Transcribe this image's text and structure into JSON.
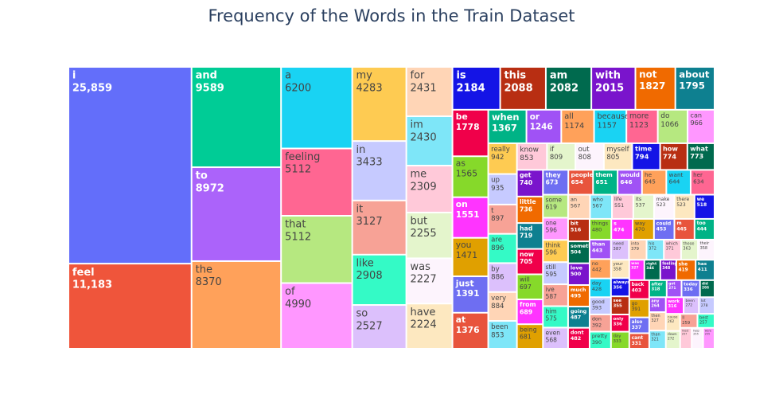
{
  "chart_data": {
    "type": "treemap",
    "title": "Frequency of the Words in the Train Dataset",
    "items": [
      {
        "word": "i",
        "count": "25,859",
        "value": 25859,
        "color": "#636efa"
      },
      {
        "word": "feel",
        "count": "11,183",
        "value": 11183,
        "color": "#ef553b"
      },
      {
        "word": "and",
        "count": "9589",
        "value": 9589,
        "color": "#00cc96"
      },
      {
        "word": "to",
        "count": "8972",
        "value": 8972,
        "color": "#ab63fa"
      },
      {
        "word": "the",
        "count": "8370",
        "value": 8370,
        "color": "#ffa15a"
      },
      {
        "word": "a",
        "count": "6200",
        "value": 6200,
        "color": "#19d3f3"
      },
      {
        "word": "feeling",
        "count": "5112",
        "value": 5112,
        "color": "#ff6692"
      },
      {
        "word": "that",
        "count": "5112",
        "value": 5112,
        "color": "#b6e880"
      },
      {
        "word": "of",
        "count": "4990",
        "value": 4990,
        "color": "#ff97ff"
      },
      {
        "word": "my",
        "count": "4283",
        "value": 4283,
        "color": "#fecb52"
      },
      {
        "word": "in",
        "count": "3433",
        "value": 3433,
        "color": "#c6caff"
      },
      {
        "word": "it",
        "count": "3127",
        "value": 3127,
        "color": "#f7a296"
      },
      {
        "word": "like",
        "count": "2908",
        "value": 2908,
        "color": "#34fac6"
      },
      {
        "word": "so",
        "count": "2527",
        "value": 2527,
        "color": "#dcc0fc"
      },
      {
        "word": "for",
        "count": "2431",
        "value": 2431,
        "color": "#ffd5b6"
      },
      {
        "word": "im",
        "count": "2430",
        "value": 2430,
        "color": "#7ee6f8"
      },
      {
        "word": "me",
        "count": "2309",
        "value": 2309,
        "color": "#ffc9d9"
      },
      {
        "word": "but",
        "count": "2255",
        "value": 2255,
        "color": "#e4f5cc"
      },
      {
        "word": "was",
        "count": "2227",
        "value": 2227,
        "color": "#fdf4fd"
      },
      {
        "word": "have",
        "count": "2224",
        "value": 2224,
        "color": "#fde8c0"
      },
      {
        "word": "is",
        "count": "2184",
        "value": 2184,
        "color": "#1414e6"
      },
      {
        "word": "this",
        "count": "2088",
        "value": 2088,
        "color": "#b82e12"
      },
      {
        "word": "am",
        "count": "2082",
        "value": 2082,
        "color": "#006a4e"
      },
      {
        "word": "with",
        "count": "2015",
        "value": 2015,
        "color": "#7a14cc"
      },
      {
        "word": "not",
        "count": "1827",
        "value": 1827,
        "color": "#f06a00"
      },
      {
        "word": "about",
        "count": "1795",
        "value": 1795,
        "color": "#0e8090"
      },
      {
        "word": "be",
        "count": "1778",
        "value": 1778,
        "color": "#f0004a"
      },
      {
        "word": "as",
        "count": "1565",
        "value": 1565,
        "color": "#86d92a"
      },
      {
        "word": "on",
        "count": "1551",
        "value": 1551,
        "color": "#ff34ff"
      },
      {
        "word": "you",
        "count": "1471",
        "value": 1471,
        "color": "#e0a000"
      },
      {
        "word": "just",
        "count": "1391",
        "value": 1391,
        "color": "#6e6ef2"
      },
      {
        "word": "at",
        "count": "1376",
        "value": 1376,
        "color": "#e8543c"
      },
      {
        "word": "when",
        "count": "1367",
        "value": 1367,
        "color": "#00b386"
      },
      {
        "word": "or",
        "count": "1246",
        "value": 1246,
        "color": "#a052f5"
      },
      {
        "word": "all",
        "count": "1174",
        "value": 1174,
        "color": "#ffa15a"
      },
      {
        "word": "because",
        "count": "1157",
        "value": 1157,
        "color": "#19d3f3"
      },
      {
        "word": "more",
        "count": "1123",
        "value": 1123,
        "color": "#ff6692"
      },
      {
        "word": "do",
        "count": "1066",
        "value": 1066,
        "color": "#b6e880"
      },
      {
        "word": "can",
        "count": "966",
        "value": 966,
        "color": "#ff97ff"
      },
      {
        "word": "really",
        "count": "942",
        "value": 942,
        "color": "#fecb52"
      },
      {
        "word": "up",
        "count": "935",
        "value": 935,
        "color": "#c6caff"
      },
      {
        "word": "t",
        "count": "897",
        "value": 897,
        "color": "#f7a296"
      },
      {
        "word": "are",
        "count": "896",
        "value": 896,
        "color": "#34fac6"
      },
      {
        "word": "by",
        "count": "886",
        "value": 886,
        "color": "#dcc0fc"
      },
      {
        "word": "very",
        "count": "884",
        "value": 884,
        "color": "#ffd5b6"
      },
      {
        "word": "been",
        "count": "853",
        "value": 853,
        "color": "#7ee6f8"
      },
      {
        "word": "know",
        "count": "853",
        "value": 853,
        "color": "#ffc9d9"
      },
      {
        "word": "if",
        "count": "809",
        "value": 809,
        "color": "#e4f5cc"
      },
      {
        "word": "out",
        "count": "808",
        "value": 808,
        "color": "#fdf4fd"
      },
      {
        "word": "myself",
        "count": "805",
        "value": 805,
        "color": "#fde8c0"
      },
      {
        "word": "time",
        "count": "794",
        "value": 794,
        "color": "#1414e6"
      },
      {
        "word": "how",
        "count": "774",
        "value": 774,
        "color": "#b82e12"
      },
      {
        "word": "what",
        "count": "773",
        "value": 773,
        "color": "#006a4e"
      },
      {
        "word": "get",
        "count": "740",
        "value": 740,
        "color": "#7a14cc"
      },
      {
        "word": "little",
        "count": "736",
        "value": 736,
        "color": "#f06a00"
      },
      {
        "word": "had",
        "count": "719",
        "value": 719,
        "color": "#0e8090"
      },
      {
        "word": "now",
        "count": "705",
        "value": 705,
        "color": "#f0004a"
      },
      {
        "word": "will",
        "count": "697",
        "value": 697,
        "color": "#86d92a"
      },
      {
        "word": "from",
        "count": "689",
        "value": 689,
        "color": "#ff34ff"
      },
      {
        "word": "being",
        "count": "681",
        "value": 681,
        "color": "#e0a000"
      },
      {
        "word": "they",
        "count": "673",
        "value": 673,
        "color": "#6e6ef2"
      },
      {
        "word": "people",
        "count": "654",
        "value": 654,
        "color": "#e8543c"
      },
      {
        "word": "them",
        "count": "651",
        "value": 651,
        "color": "#00b386"
      },
      {
        "word": "would",
        "count": "646",
        "value": 646,
        "color": "#a052f5"
      },
      {
        "word": "he",
        "count": "645",
        "value": 645,
        "color": "#ffa15a"
      },
      {
        "word": "want",
        "count": "644",
        "value": 644,
        "color": "#19d3f3"
      },
      {
        "word": "her",
        "count": "634",
        "value": 634,
        "color": "#ff6692"
      },
      {
        "word": "some",
        "count": "619",
        "value": 619,
        "color": "#b6e880"
      },
      {
        "word": "one",
        "count": "596",
        "value": 596,
        "color": "#ff97ff"
      },
      {
        "word": "think",
        "count": "596",
        "value": 596,
        "color": "#fecb52"
      },
      {
        "word": "still",
        "count": "595",
        "value": 595,
        "color": "#c6caff"
      },
      {
        "word": "ive",
        "count": "587",
        "value": 587,
        "color": "#f7a296"
      },
      {
        "word": "him",
        "count": "575",
        "value": 575,
        "color": "#34fac6"
      },
      {
        "word": "even",
        "count": "568",
        "value": 568,
        "color": "#dcc0fc"
      },
      {
        "word": "an",
        "count": "567",
        "value": 567,
        "color": "#ffd5b6"
      },
      {
        "word": "who",
        "count": "567",
        "value": 567,
        "color": "#7ee6f8"
      },
      {
        "word": "life",
        "count": "551",
        "value": 551,
        "color": "#ffc9d9"
      },
      {
        "word": "its",
        "count": "537",
        "value": 537,
        "color": "#e4f5cc"
      },
      {
        "word": "make",
        "count": "523",
        "value": 523,
        "color": "#fdf4fd"
      },
      {
        "word": "there",
        "count": "523",
        "value": 523,
        "color": "#fde8c0"
      },
      {
        "word": "we",
        "count": "518",
        "value": 518,
        "color": "#1414e6"
      },
      {
        "word": "bit",
        "count": "516",
        "value": 516,
        "color": "#b82e12"
      },
      {
        "word": "something",
        "count": "504",
        "value": 504,
        "color": "#006a4e"
      },
      {
        "word": "love",
        "count": "500",
        "value": 500,
        "color": "#7a14cc"
      },
      {
        "word": "much",
        "count": "495",
        "value": 495,
        "color": "#f06a00"
      },
      {
        "word": "going",
        "count": "487",
        "value": 487,
        "color": "#0e8090"
      },
      {
        "word": "dont",
        "count": "482",
        "value": 482,
        "color": "#f0004a"
      },
      {
        "word": "things",
        "count": "480",
        "value": 480,
        "color": "#86d92a"
      },
      {
        "word": "s",
        "count": "474",
        "value": 474,
        "color": "#ff34ff"
      },
      {
        "word": "way",
        "count": "470",
        "value": 470,
        "color": "#e0a000"
      },
      {
        "word": "could",
        "count": "453",
        "value": 453,
        "color": "#6e6ef2"
      },
      {
        "word": "m",
        "count": "445",
        "value": 445,
        "color": "#e8543c"
      },
      {
        "word": "too",
        "count": "444",
        "value": 444,
        "color": "#00b386"
      },
      {
        "word": "than",
        "count": "443",
        "value": 443,
        "color": "#a052f5"
      },
      {
        "word": "no",
        "count": "442",
        "value": 442,
        "color": "#ffa15a"
      },
      {
        "word": "day",
        "count": "428",
        "value": 428,
        "color": "#19d3f3"
      },
      {
        "word": "good",
        "count": "393",
        "value": 393,
        "color": "#c6caff"
      },
      {
        "word": "don",
        "count": "392",
        "value": 392,
        "color": "#f7a296"
      },
      {
        "word": "pretty",
        "count": "390",
        "value": 390,
        "color": "#34fac6"
      },
      {
        "word": "need",
        "count": "387",
        "value": 387,
        "color": "#dcc0fc"
      },
      {
        "word": "into",
        "count": "379",
        "value": 379,
        "color": "#ffd5b6"
      },
      {
        "word": "his",
        "count": "372",
        "value": 372,
        "color": "#7ee6f8"
      },
      {
        "word": "which",
        "count": "371",
        "value": 371,
        "color": "#ffc9d9"
      },
      {
        "word": "these",
        "count": "363",
        "value": 363,
        "color": "#e4f5cc"
      },
      {
        "word": "their",
        "count": "358",
        "value": 358,
        "color": "#fdf4fd"
      },
      {
        "word": "your",
        "count": "358",
        "value": 358,
        "color": "#fde8c0"
      },
      {
        "word": "always",
        "count": "356",
        "value": 356,
        "color": "#1414e6"
      },
      {
        "word": "see",
        "count": "355",
        "value": 355,
        "color": "#b82e12"
      },
      {
        "word": "only",
        "count": "336",
        "value": 336,
        "color": "#f0004a"
      },
      {
        "word": "day",
        "count": "333",
        "value": 333,
        "color": "#86d92a"
      },
      {
        "word": "was",
        "count": "327",
        "value": 327,
        "color": "#ff34ff"
      },
      {
        "word": "right",
        "count": "346",
        "value": 346,
        "color": "#006a4e"
      },
      {
        "word": "feelings",
        "count": "348",
        "value": 348,
        "color": "#7a14cc"
      },
      {
        "word": "she",
        "count": "419",
        "value": 419,
        "color": "#f06a00"
      },
      {
        "word": "has",
        "count": "411",
        "value": 411,
        "color": "#0e8090"
      },
      {
        "word": "back",
        "count": "403",
        "value": 403,
        "color": "#f0004a"
      },
      {
        "word": "go",
        "count": "391",
        "value": 391,
        "color": "#e0a000"
      },
      {
        "word": "also",
        "count": "337",
        "value": 337,
        "color": "#6e6ef2"
      },
      {
        "word": "cant",
        "count": "331",
        "value": 331,
        "color": "#e8543c"
      },
      {
        "word": "after",
        "count": "318",
        "value": 318,
        "color": "#00b386"
      },
      {
        "word": "got",
        "count": "271",
        "value": 271,
        "color": "#a052f5"
      },
      {
        "word": "today",
        "count": "336",
        "value": 336,
        "color": "#6e6ef2"
      },
      {
        "word": "did",
        "count": "266",
        "value": 266,
        "color": "#006a4e"
      },
      {
        "word": "any",
        "count": "264",
        "value": 264,
        "color": "#a052f5"
      },
      {
        "word": "then",
        "count": "327",
        "value": 327,
        "color": "#ffd5b6"
      },
      {
        "word": "than",
        "count": "321",
        "value": 321,
        "color": "#7ee6f8"
      },
      {
        "word": "work",
        "count": "316",
        "value": 316,
        "color": "#ff34ff"
      },
      {
        "word": "been",
        "count": "272",
        "value": 272,
        "color": "#dcc0fc"
      },
      {
        "word": "lot",
        "count": "278",
        "value": 278,
        "color": "#c6caff"
      },
      {
        "word": "cause",
        "count": "262",
        "value": 262,
        "color": "#fde8c0"
      },
      {
        "word": "down",
        "count": "272",
        "value": 272,
        "color": "#e4f5cc"
      },
      {
        "word": "ll",
        "count": "259",
        "value": 259,
        "color": "#f7a296"
      },
      {
        "word": "best",
        "count": "257",
        "value": 257,
        "color": "#34fac6"
      },
      {
        "word": "most",
        "count": "257",
        "value": 257,
        "color": "#ffc9d9"
      },
      {
        "word": "help",
        "count": "255",
        "value": 255,
        "color": "#fdf4fd"
      },
      {
        "word": "were",
        "count": "255",
        "value": 255,
        "color": "#ff97ff"
      }
    ]
  }
}
